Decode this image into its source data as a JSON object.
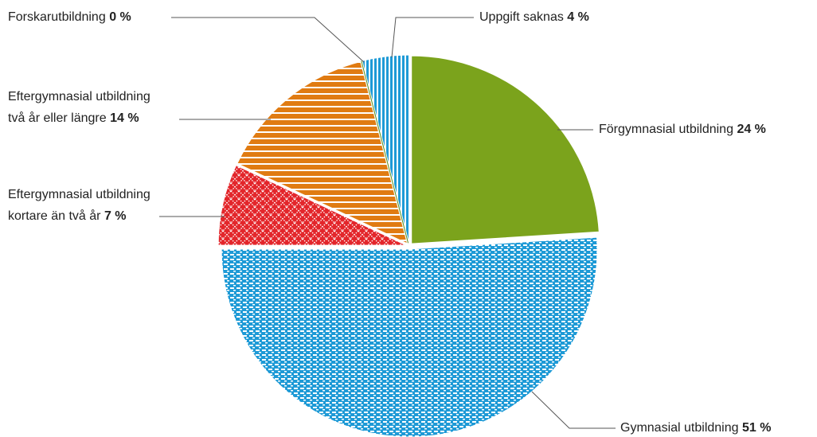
{
  "chart_data": {
    "type": "pie",
    "categories": [
      "Förgymnasial utbildning",
      "Gymnasial utbildning",
      "Eftergymnasial utbildning\nkortare än två år",
      "Eftergymnasial utbildning\ntvå år eller längre",
      "Forskarutbildning",
      "Uppgift saknas"
    ],
    "values": [
      24,
      51,
      7,
      14,
      0,
      4
    ],
    "value_labels": [
      "24 %",
      "51 %",
      "7 %",
      "14 %",
      "0 %",
      "4 %"
    ],
    "colors": [
      "#7ba31c",
      "#1e9ad6",
      "#e3262b",
      "#e07b12",
      "#5a8f1e",
      "#1e9ad6"
    ],
    "patterns": [
      "solid",
      "dots",
      "crosshatch",
      "horizontal",
      "solid",
      "vertical"
    ]
  }
}
